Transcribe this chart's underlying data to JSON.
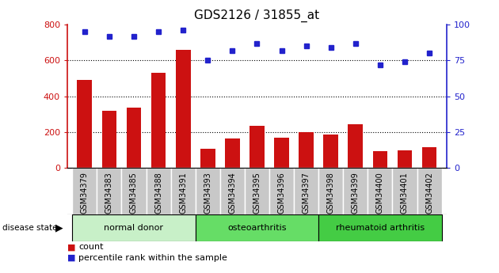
{
  "title": "GDS2126 / 31855_at",
  "categories": [
    "GSM34379",
    "GSM34383",
    "GSM34385",
    "GSM34388",
    "GSM34391",
    "GSM34393",
    "GSM34394",
    "GSM34395",
    "GSM34396",
    "GSM34397",
    "GSM34398",
    "GSM34399",
    "GSM34400",
    "GSM34401",
    "GSM34402"
  ],
  "counts": [
    490,
    320,
    335,
    530,
    660,
    105,
    165,
    235,
    170,
    200,
    185,
    245,
    95,
    100,
    115
  ],
  "percentiles": [
    95,
    92,
    92,
    95,
    96,
    75,
    82,
    87,
    82,
    85,
    84,
    87,
    72,
    74,
    80
  ],
  "groups": [
    {
      "label": "normal donor",
      "start": 0,
      "end": 5
    },
    {
      "label": "osteoarthritis",
      "start": 5,
      "end": 10
    },
    {
      "label": "rheumatoid arthritis",
      "start": 10,
      "end": 15
    }
  ],
  "group_colors": [
    "#c8f0c8",
    "#66dd66",
    "#44cc44"
  ],
  "bar_color": "#cc1111",
  "dot_color": "#2222cc",
  "left_axis_color": "#cc1111",
  "right_axis_color": "#2222cc",
  "ylim_left": [
    0,
    800
  ],
  "ylim_right": [
    0,
    100
  ],
  "yticks_left": [
    0,
    200,
    400,
    600,
    800
  ],
  "yticks_right": [
    0,
    25,
    50,
    75,
    100
  ],
  "grid_lines": [
    200,
    400,
    600
  ],
  "tick_bg_color": "#c8c8c8",
  "tick_label_fontsize": 7,
  "title_fontsize": 11
}
